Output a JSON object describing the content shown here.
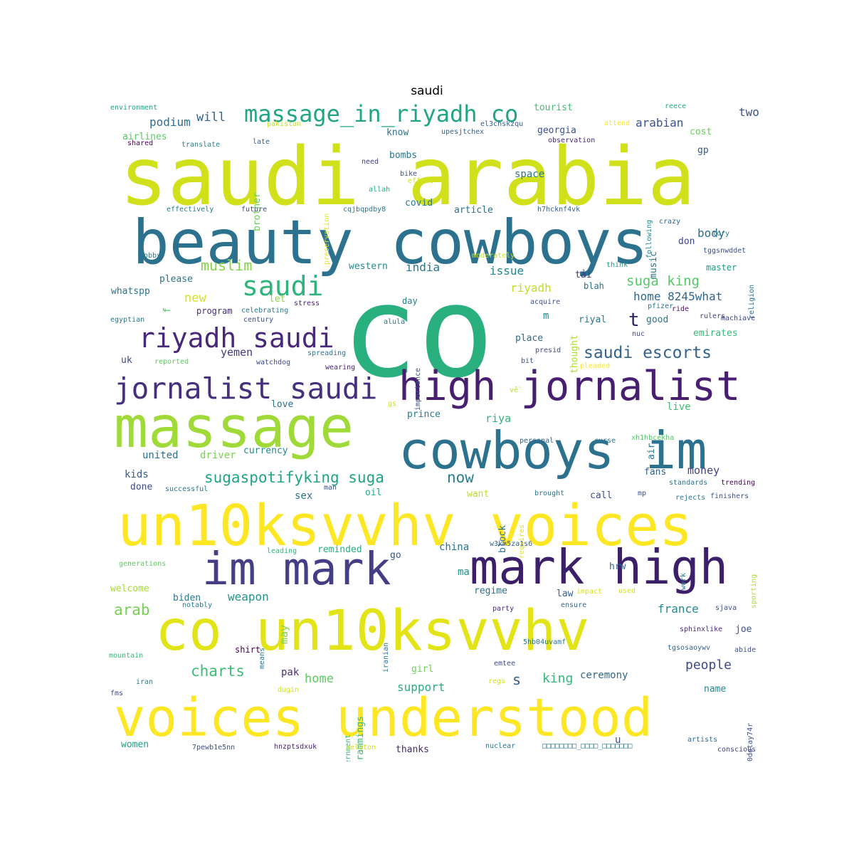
{
  "title": "saudi",
  "words": [
    {
      "t": "co",
      "c": "#2ab07f"
    },
    {
      "t": "saudi arabia",
      "c": "#d0e11c"
    },
    {
      "t": "beauty cowboys",
      "c": "#2c728e"
    },
    {
      "t": "massage",
      "c": "#a0da39"
    },
    {
      "t": "cowboys im",
      "c": "#2c728e"
    },
    {
      "t": "high jornalist",
      "c": "#481f70"
    },
    {
      "t": "un10ksvvhv voices",
      "c": "#fde725"
    },
    {
      "t": "im mark",
      "c": "#433e85"
    },
    {
      "t": "mark high",
      "c": "#3b1f6b"
    },
    {
      "t": "co un10ksvvhv",
      "c": "#e2e418"
    },
    {
      "t": "voices understood",
      "c": "#fde725"
    },
    {
      "t": "jornalist saudi",
      "c": "#46307e"
    },
    {
      "t": "riyadh saudi",
      "c": "#482878"
    },
    {
      "t": "saudi",
      "c": "#2fb47c"
    },
    {
      "t": "massage_in_riyadh co",
      "c": "#21a585"
    },
    {
      "t": "saudi escorts",
      "c": "#33638d"
    },
    {
      "t": "sugaspotifyking suga",
      "c": "#20a486"
    },
    {
      "t": "suga king",
      "c": "#56c667"
    },
    {
      "t": "home 8245what",
      "c": "#31678e"
    },
    {
      "t": "charts",
      "c": "#3fbc73"
    },
    {
      "t": "arab",
      "c": "#75d054"
    },
    {
      "t": "muslim",
      "c": "#84d44b"
    },
    {
      "t": "podium",
      "c": "#2d708e"
    },
    {
      "t": "will",
      "c": "#34608d"
    },
    {
      "t": "now",
      "c": "#287d8e"
    },
    {
      "t": "people",
      "c": "#3e4989"
    },
    {
      "t": "france",
      "c": "#238a8d"
    },
    {
      "t": "weapon",
      "c": "#1f958b"
    },
    {
      "t": "home",
      "c": "#5ec962"
    },
    {
      "t": "support",
      "c": "#27ad81"
    },
    {
      "t": "king",
      "c": "#35b779"
    },
    {
      "t": "s",
      "c": "#365c8d"
    },
    {
      "t": "t",
      "c": "#2d1e66"
    },
    {
      "t": "new",
      "c": "#d8e219"
    },
    {
      "t": "yemen",
      "c": "#453882"
    },
    {
      "t": "body",
      "c": "#2e6f8e"
    },
    {
      "t": "arabian",
      "c": "#39558c"
    },
    {
      "t": "two",
      "c": "#3b528b"
    },
    {
      "t": "riyadh",
      "c": "#c0df25"
    },
    {
      "t": "india",
      "c": "#2a778e"
    },
    {
      "t": "issue",
      "c": "#25858e"
    },
    {
      "t": "western",
      "c": "#228c8d"
    },
    {
      "t": "money",
      "c": "#414487"
    },
    {
      "t": "ceremony",
      "c": "#31688e"
    },
    {
      "t": "fans",
      "c": "#355f8d"
    },
    {
      "t": "sex",
      "c": "#2d708e"
    },
    {
      "t": "oil",
      "c": "#22a884"
    },
    {
      "t": "pak",
      "c": "#472d7b"
    },
    {
      "t": "girl",
      "c": "#6ece58"
    },
    {
      "t": "live",
      "c": "#3dbc74"
    },
    {
      "t": "riya",
      "c": "#2fb47c"
    },
    {
      "t": "prince",
      "c": "#287c8e"
    },
    {
      "t": "love",
      "c": "#2d718e"
    },
    {
      "t": "currency",
      "c": "#24878e"
    },
    {
      "t": "driver",
      "c": "#7ad151"
    },
    {
      "t": "united",
      "c": "#2d708e"
    },
    {
      "t": "kids",
      "c": "#355e8d"
    },
    {
      "t": "done",
      "c": "#3e4a89"
    },
    {
      "t": "want",
      "c": "#bddf26"
    },
    {
      "t": "call",
      "c": "#3e4c8a"
    },
    {
      "t": "china",
      "c": "#2a768e"
    },
    {
      "t": "reminded",
      "c": "#26ad81"
    },
    {
      "t": "ma",
      "c": "#20928c"
    },
    {
      "t": "go",
      "c": "#38588c"
    },
    {
      "t": "regime",
      "c": "#2d708e"
    },
    {
      "t": "law",
      "c": "#35608d"
    },
    {
      "t": "hrw",
      "c": "#31678e"
    },
    {
      "t": "biden",
      "c": "#2a788e"
    },
    {
      "t": "welcome",
      "c": "#a5db36"
    },
    {
      "t": "may",
      "c": "#7fd34e"
    },
    {
      "t": "shirt",
      "c": "#440154"
    },
    {
      "t": "women",
      "c": "#1fa088"
    },
    {
      "t": "thanks",
      "c": "#482576"
    },
    {
      "t": "name",
      "c": "#24868e"
    },
    {
      "t": "joe",
      "c": "#3b528b"
    },
    {
      "t": "u",
      "c": "#3d4e8a"
    },
    {
      "t": "please",
      "c": "#2b758e"
    },
    {
      "t": "let",
      "c": "#89d548"
    },
    {
      "t": "program",
      "c": "#472e7c"
    },
    {
      "t": "whatspp",
      "c": "#2b748e"
    },
    {
      "t": "f",
      "c": "#4ac16d"
    },
    {
      "t": "m",
      "c": "#24878e"
    },
    {
      "t": "day",
      "c": "#26828e"
    },
    {
      "t": "place",
      "c": "#306a8e"
    },
    {
      "t": "good",
      "c": "#2b758e"
    },
    {
      "t": "riyal",
      "c": "#29798e"
    },
    {
      "t": "emirates",
      "c": "#3aba76"
    },
    {
      "t": "master",
      "c": "#1f9e89"
    },
    {
      "t": "blah",
      "c": "#2d718e"
    },
    {
      "t": "tải",
      "c": "#453581"
    },
    {
      "t": "thought",
      "c": "#addc30"
    },
    {
      "t": "music",
      "c": "#2a778e"
    },
    {
      "t": "don",
      "c": "#3f4788"
    },
    {
      "t": "article",
      "c": "#2e6e8e"
    },
    {
      "t": "covid",
      "c": "#2a768e"
    },
    {
      "t": "space",
      "c": "#2a788e"
    },
    {
      "t": "bombs",
      "c": "#2b748e"
    },
    {
      "t": "georgia",
      "c": "#3b518b"
    },
    {
      "t": "know",
      "c": "#2c728e"
    },
    {
      "t": "tourist",
      "c": "#3fbc73"
    },
    {
      "t": "cost",
      "c": "#6ccd5a"
    },
    {
      "t": "gp",
      "c": "#38588c"
    },
    {
      "t": "brother",
      "c": "#6ccd5a"
    },
    {
      "t": "airlines",
      "c": "#5ac864"
    },
    {
      "t": "uk",
      "c": "#3f4889"
    },
    {
      "t": "block",
      "c": "#2c738e"
    },
    {
      "t": "air",
      "c": "#2c728e"
    },
    {
      "t": "programmings",
      "c": "#3aba76"
    },
    {
      "t": "government",
      "c": "#34b679"
    },
    {
      "t": "environment",
      "c": "#20a386"
    },
    {
      "t": "pakistan",
      "c": "#c2df23"
    },
    {
      "t": "shared",
      "c": "#440154"
    },
    {
      "t": "translate",
      "c": "#25848e"
    },
    {
      "t": "late",
      "c": "#33638d"
    },
    {
      "t": "upesjtchex",
      "c": "#32648e"
    },
    {
      "t": "el3chskzqu",
      "c": "#365d8d"
    },
    {
      "t": "observation",
      "c": "#482979"
    },
    {
      "t": "attend",
      "c": "#fde725"
    },
    {
      "t": "reece",
      "c": "#22a884"
    },
    {
      "t": "preservation",
      "c": "#e5e419"
    },
    {
      "t": "need",
      "c": "#423f85"
    },
    {
      "t": "bike",
      "c": "#3b528b"
    },
    {
      "t": "effect",
      "c": "#d2e21b"
    },
    {
      "t": "allah",
      "c": "#2db27d"
    },
    {
      "t": "following",
      "c": "#228d8d"
    },
    {
      "t": "cqjbqpdby8",
      "c": "#2a768e"
    },
    {
      "t": "effectively",
      "c": "#297a8e"
    },
    {
      "t": "future",
      "c": "#3e4c8a"
    },
    {
      "t": "h7hcknf4vk",
      "c": "#355f8d"
    },
    {
      "t": "crazy",
      "c": "#31678e"
    },
    {
      "t": "tory",
      "c": "#26828e"
    },
    {
      "t": "tggsnwddet",
      "c": "#3b528b"
    },
    {
      "t": "religion",
      "c": "#2d708e"
    },
    {
      "t": "moderately",
      "c": "#c8e020"
    },
    {
      "t": "think",
      "c": "#1fa088"
    },
    {
      "t": "lobby",
      "c": "#2a788e"
    },
    {
      "t": "acquire",
      "c": "#3b528b"
    },
    {
      "t": "pfizer",
      "c": "#2a768e"
    },
    {
      "t": "ride",
      "c": "#471164"
    },
    {
      "t": "rulers",
      "c": "#414487"
    },
    {
      "t": "machiave",
      "c": "#3e4989"
    },
    {
      "t": "nuc",
      "c": "#3f4889"
    },
    {
      "t": "celebrating",
      "c": "#29798e"
    },
    {
      "t": "stress",
      "c": "#482173"
    },
    {
      "t": "century",
      "c": "#3b528b"
    },
    {
      "t": "egyptian",
      "c": "#2a788e"
    },
    {
      "t": "alula",
      "c": "#2a768e"
    },
    {
      "t": "importance",
      "c": "#3b528b"
    },
    {
      "t": "presid",
      "c": "#3e4c8a"
    },
    {
      "t": "spreading",
      "c": "#2c738e"
    },
    {
      "t": "reported",
      "c": "#5ec962"
    },
    {
      "t": "watchdog",
      "c": "#3e4989"
    },
    {
      "t": "bit",
      "c": "#3b528b"
    },
    {
      "t": "pleaded",
      "c": "#fde725"
    },
    {
      "t": "wearing",
      "c": "#482576"
    },
    {
      "t": "về",
      "c": "#b5de2b"
    },
    {
      "t": "gs",
      "c": "#d2e21b"
    },
    {
      "t": "personal",
      "c": "#33638d"
    },
    {
      "t": "curse",
      "c": "#2a778e"
    },
    {
      "t": "xh1hbcekha",
      "c": "#52c569"
    },
    {
      "t": "man",
      "c": "#3b528b"
    },
    {
      "t": "successful",
      "c": "#2a788e"
    },
    {
      "t": "brought",
      "c": "#2b758e"
    },
    {
      "t": "requires",
      "c": "#dde318"
    },
    {
      "t": "mp",
      "c": "#3b528b"
    },
    {
      "t": "standards",
      "c": "#2c738e"
    },
    {
      "t": "trending",
      "c": "#440154"
    },
    {
      "t": "rejects",
      "c": "#2a788e"
    },
    {
      "t": "finishers",
      "c": "#3b528b"
    },
    {
      "t": "w3km5za1s6",
      "c": "#355f8d"
    },
    {
      "t": "leading",
      "c": "#32b67a"
    },
    {
      "t": "generations",
      "c": "#5ec962"
    },
    {
      "t": "work",
      "c": "#2a788e"
    },
    {
      "t": "sporting",
      "c": "#b0dd2f"
    },
    {
      "t": "impact",
      "c": "#dde318"
    },
    {
      "t": "used",
      "c": "#d8e219"
    },
    {
      "t": "notably",
      "c": "#2a788e"
    },
    {
      "t": "ensure",
      "c": "#31688e"
    },
    {
      "t": "party",
      "c": "#482878"
    },
    {
      "t": "sjava",
      "c": "#3b528b"
    },
    {
      "t": "sphinxlike",
      "c": "#482979"
    },
    {
      "t": "means",
      "c": "#2a768e"
    },
    {
      "t": "iranian",
      "c": "#2c728e"
    },
    {
      "t": "mountain",
      "c": "#37b878"
    },
    {
      "t": "5hb04uvamf",
      "c": "#2a768e"
    },
    {
      "t": "tgsosaoywv",
      "c": "#33638d"
    },
    {
      "t": "abide",
      "c": "#3b528b"
    },
    {
      "t": "emtee",
      "c": "#3e4c8a"
    },
    {
      "t": "iran",
      "c": "#2a788e"
    },
    {
      "t": "dugin",
      "c": "#d2e21b"
    },
    {
      "t": "regs",
      "c": "#d5e21a"
    },
    {
      "t": "u0dotay74r",
      "c": "#3b528b"
    },
    {
      "t": "fms",
      "c": "#3e4c8a"
    },
    {
      "t": "7pewb1e5nn",
      "c": "#3b528b"
    },
    {
      "t": "hnzptsdxuk",
      "c": "#482173"
    },
    {
      "t": "peloton",
      "c": "#d2e21b"
    },
    {
      "t": "nuclear",
      "c": "#2a788e"
    },
    {
      "t": "□□□□□□□□_□□□□_□□□□□□□",
      "c": "#2c738e"
    },
    {
      "t": "artists",
      "c": "#31688e"
    },
    {
      "t": "conscious",
      "c": "#414487"
    }
  ]
}
